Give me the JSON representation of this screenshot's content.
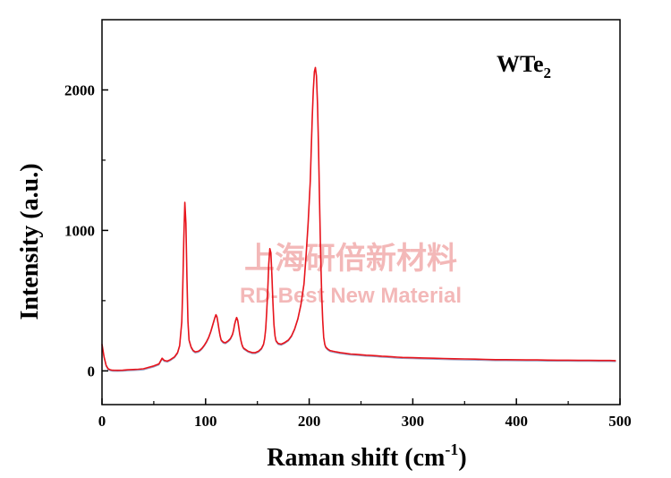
{
  "chart_data": {
    "type": "line",
    "title": "",
    "xlabel": "Raman shift (cm",
    "xlabel_sup": "-1",
    "xlabel_close": ")",
    "ylabel": "Intensity (a.u.)",
    "xlim": [
      0,
      500
    ],
    "ylim": [
      -240,
      2500
    ],
    "xticks": [
      0,
      100,
      200,
      300,
      400,
      500
    ],
    "yticks": [
      0,
      1000,
      2000
    ],
    "grid": false,
    "annotation": {
      "base": "WTe",
      "sub": "2"
    },
    "watermark": {
      "line1": "上海研倍新材料",
      "line2": "RD-Best New Material"
    },
    "colors": {
      "series": "#e8141c",
      "shadow": "#4a5a9a",
      "watermark": "#f3b8b8",
      "axis": "#000000"
    },
    "series": [
      {
        "x": [
          0,
          2,
          4,
          6,
          8,
          10,
          15,
          20,
          25,
          30,
          35,
          40,
          45,
          50,
          55,
          58,
          60,
          63,
          66,
          70,
          73,
          75,
          77,
          78,
          79,
          80,
          81,
          82,
          83,
          84,
          86,
          88,
          90,
          93,
          95,
          97,
          99,
          101,
          103,
          105,
          107,
          109,
          110,
          111,
          112,
          113,
          114,
          115,
          117,
          119,
          120,
          122,
          124,
          126,
          127,
          128,
          129,
          130,
          131,
          132,
          133,
          134,
          135,
          136,
          137,
          139,
          141,
          143,
          145,
          148,
          151,
          154,
          156,
          157,
          158,
          159,
          160,
          161,
          162,
          163,
          164,
          165,
          166,
          167,
          168,
          170,
          173,
          176,
          180,
          183,
          186,
          189,
          192,
          195,
          197,
          199,
          201,
          202,
          203,
          204,
          205,
          206,
          207,
          208,
          209,
          210,
          211,
          212,
          213,
          214,
          215,
          216,
          218,
          220,
          223,
          226,
          230,
          235,
          240,
          245,
          250,
          255,
          260,
          265,
          270,
          275,
          280,
          285,
          290,
          295,
          300,
          310,
          320,
          330,
          340,
          350,
          360,
          370,
          380,
          390,
          400,
          410,
          420,
          430,
          440,
          450,
          460,
          470,
          480,
          490,
          496
        ],
        "y": [
          190,
          100,
          40,
          15,
          8,
          5,
          4,
          5,
          8,
          10,
          12,
          15,
          25,
          35,
          50,
          90,
          75,
          70,
          80,
          100,
          130,
          180,
          350,
          600,
          950,
          1200,
          1050,
          650,
          350,
          220,
          170,
          145,
          135,
          140,
          150,
          165,
          185,
          210,
          240,
          280,
          330,
          380,
          400,
          385,
          340,
          290,
          250,
          220,
          205,
          200,
          205,
          215,
          230,
          260,
          290,
          330,
          360,
          380,
          360,
          310,
          260,
          220,
          190,
          170,
          160,
          150,
          140,
          135,
          130,
          130,
          140,
          160,
          190,
          230,
          300,
          420,
          580,
          760,
          870,
          840,
          680,
          480,
          330,
          250,
          215,
          195,
          190,
          200,
          220,
          250,
          300,
          370,
          470,
          620,
          820,
          1050,
          1350,
          1580,
          1820,
          2000,
          2130,
          2160,
          2100,
          1900,
          1600,
          1200,
          850,
          560,
          360,
          240,
          190,
          170,
          155,
          145,
          140,
          135,
          130,
          125,
          120,
          118,
          115,
          112,
          110,
          108,
          105,
          103,
          100,
          98,
          96,
          95,
          94,
          92,
          90,
          88,
          86,
          85,
          84,
          82,
          80,
          80,
          79,
          78,
          78,
          77,
          76,
          76,
          75,
          75,
          74,
          74,
          73
        ]
      }
    ]
  }
}
